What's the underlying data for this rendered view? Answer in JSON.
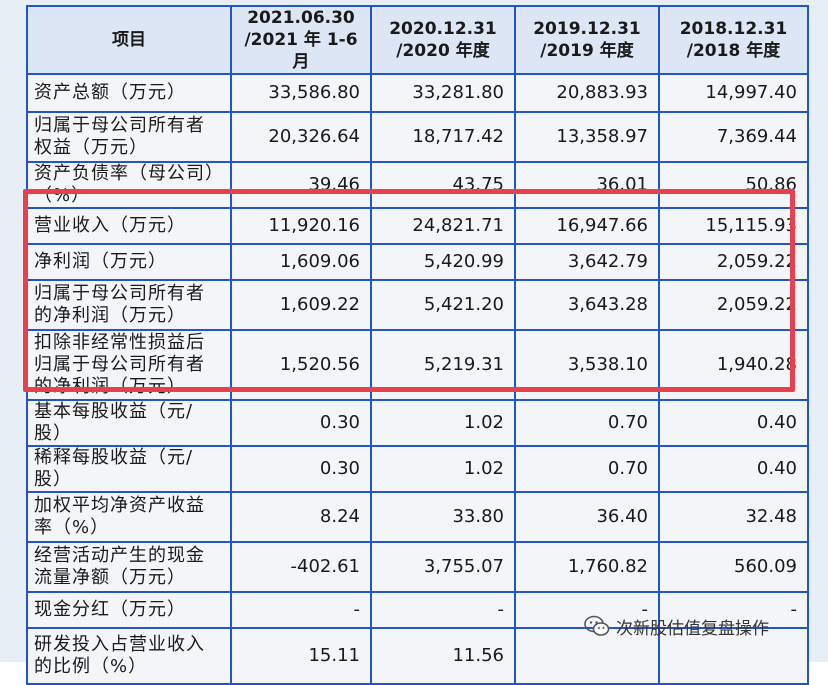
{
  "table": {
    "headers": [
      {
        "line1": "项目",
        "line2": ""
      },
      {
        "line1": "2021.06.30",
        "line2": "/2021 年 1-6 月"
      },
      {
        "line1": "2020.12.31",
        "line2": "/2020 年度"
      },
      {
        "line1": "2019.12.31",
        "line2": "/2019 年度"
      },
      {
        "line1": "2018.12.31",
        "line2": "/2018 年度"
      }
    ],
    "rows": [
      {
        "label": "资产总额（万元）",
        "values": [
          "33,586.80",
          "33,281.80",
          "20,883.93",
          "14,997.40"
        ]
      },
      {
        "label": "归属于母公司所有者权益（万元）",
        "values": [
          "20,326.64",
          "18,717.42",
          "13,358.97",
          "7,369.44"
        ]
      },
      {
        "label": "资产负债率（母公司）（%）",
        "values": [
          "39.46",
          "43.75",
          "36.01",
          "50.86"
        ]
      },
      {
        "label": "营业收入（万元）",
        "values": [
          "11,920.16",
          "24,821.71",
          "16,947.66",
          "15,115.93"
        ]
      },
      {
        "label": "净利润（万元）",
        "values": [
          "1,609.06",
          "5,420.99",
          "3,642.79",
          "2,059.22"
        ]
      },
      {
        "label": "归属于母公司所有者的净利润（万元）",
        "values": [
          "1,609.22",
          "5,421.20",
          "3,643.28",
          "2,059.22"
        ]
      },
      {
        "label": "扣除非经常性损益后归属于母公司所有者的净利润（万元）",
        "values": [
          "1,520.56",
          "5,219.31",
          "3,538.10",
          "1,940.28"
        ]
      },
      {
        "label": "基本每股收益（元/股）",
        "values": [
          "0.30",
          "1.02",
          "0.70",
          "0.40"
        ]
      },
      {
        "label": "稀释每股收益（元/股）",
        "values": [
          "0.30",
          "1.02",
          "0.70",
          "0.40"
        ]
      },
      {
        "label": "加权平均净资产收益率（%）",
        "values": [
          "8.24",
          "33.80",
          "36.40",
          "32.48"
        ]
      },
      {
        "label": "经营活动产生的现金流量净额（万元）",
        "values": [
          "-402.61",
          "3,755.07",
          "1,760.82",
          "560.09"
        ]
      },
      {
        "label": "现金分红（万元）",
        "values": [
          "-",
          "-",
          "-",
          "-"
        ]
      },
      {
        "label": "研发投入占营业收入的比例（%）",
        "values": [
          "15.11",
          "11.56",
          "",
          ""
        ]
      }
    ]
  },
  "highlight": {
    "color": "#e9404f"
  },
  "watermark": {
    "text": "次新股估值复盘操作",
    "icon": "wechat-icon"
  },
  "colors": {
    "border": "#2255c9",
    "header_bg": "#dce6f4",
    "body_bg": "#f3f5f8"
  }
}
